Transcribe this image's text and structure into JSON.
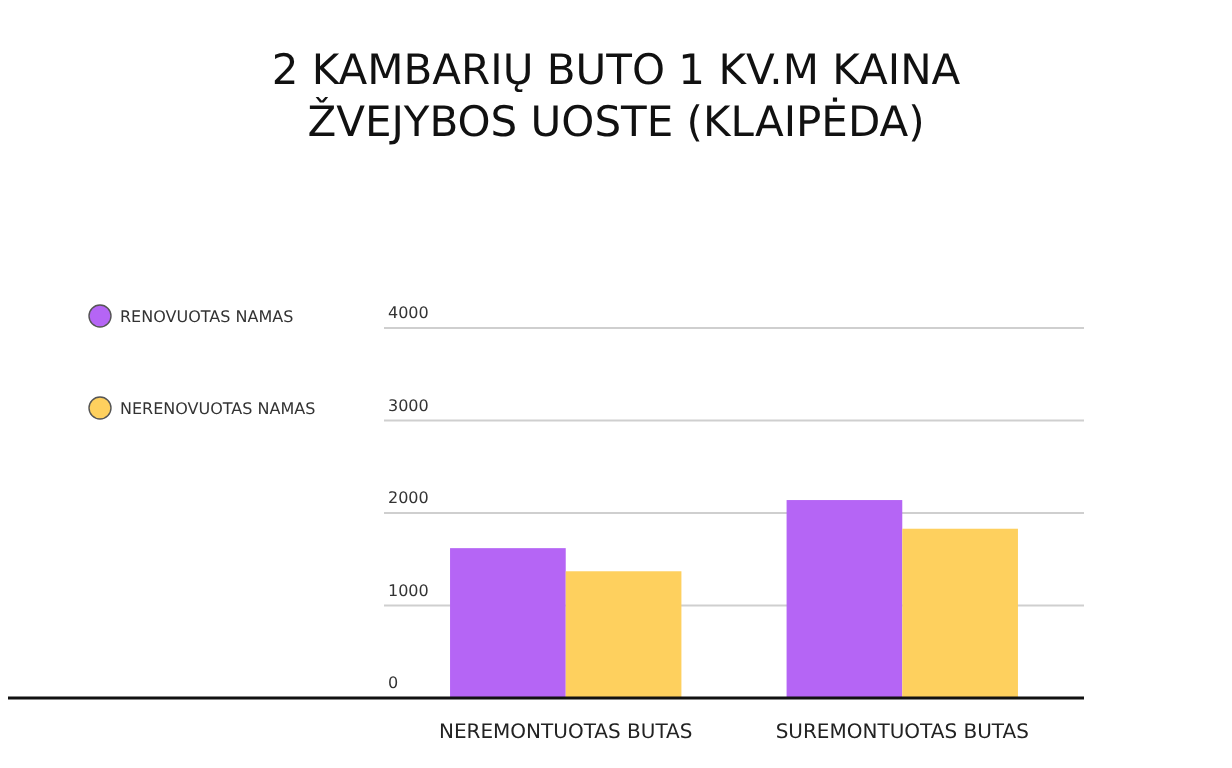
{
  "chart_data": {
    "type": "bar",
    "title": "2 KAMBARIŲ BUTO 1 KV.M KAINA\nŽVEJYBOS UOSTE (KLAIPĖDA)",
    "categories": [
      "NEREMONTUOTAS BUTAS",
      "SUREMONTUOTAS BUTAS"
    ],
    "series": [
      {
        "name": "RENOVUOTAS NAMAS",
        "color": "#b565f5",
        "values": [
          1620,
          2140
        ]
      },
      {
        "name": "NERENOVUOTAS NAMAS",
        "color": "#fed05e",
        "values": [
          1370,
          1830
        ]
      }
    ],
    "ylim": [
      0,
      4000
    ],
    "yticks": [
      0,
      1000,
      2000,
      3000,
      4000
    ],
    "grid": "y",
    "legend": "left"
  }
}
